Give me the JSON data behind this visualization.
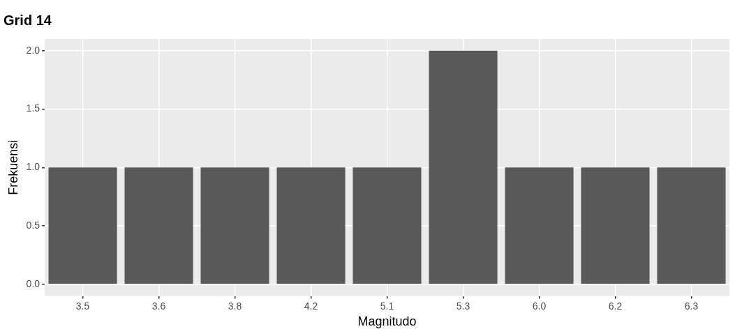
{
  "chart_data": {
    "type": "bar",
    "title": "Grid 14",
    "xlabel": "Magnitudo",
    "ylabel": "Frekuensi",
    "categories": [
      "3.5",
      "3.6",
      "3.8",
      "4.2",
      "5.1",
      "5.3",
      "6.0",
      "6.2",
      "6.3"
    ],
    "values": [
      1,
      1,
      1,
      1,
      1,
      2,
      1,
      1,
      1
    ],
    "color": "#595959",
    "ylim": [
      -0.1,
      2.1
    ],
    "yticks": [
      {
        "value": 0,
        "label": "0.0"
      },
      {
        "value": 0.5,
        "label": "0.5"
      },
      {
        "value": 1,
        "label": "1.0"
      },
      {
        "value": 1.5,
        "label": "1.5"
      },
      {
        "value": 2,
        "label": "2.0"
      }
    ],
    "grid": true
  }
}
